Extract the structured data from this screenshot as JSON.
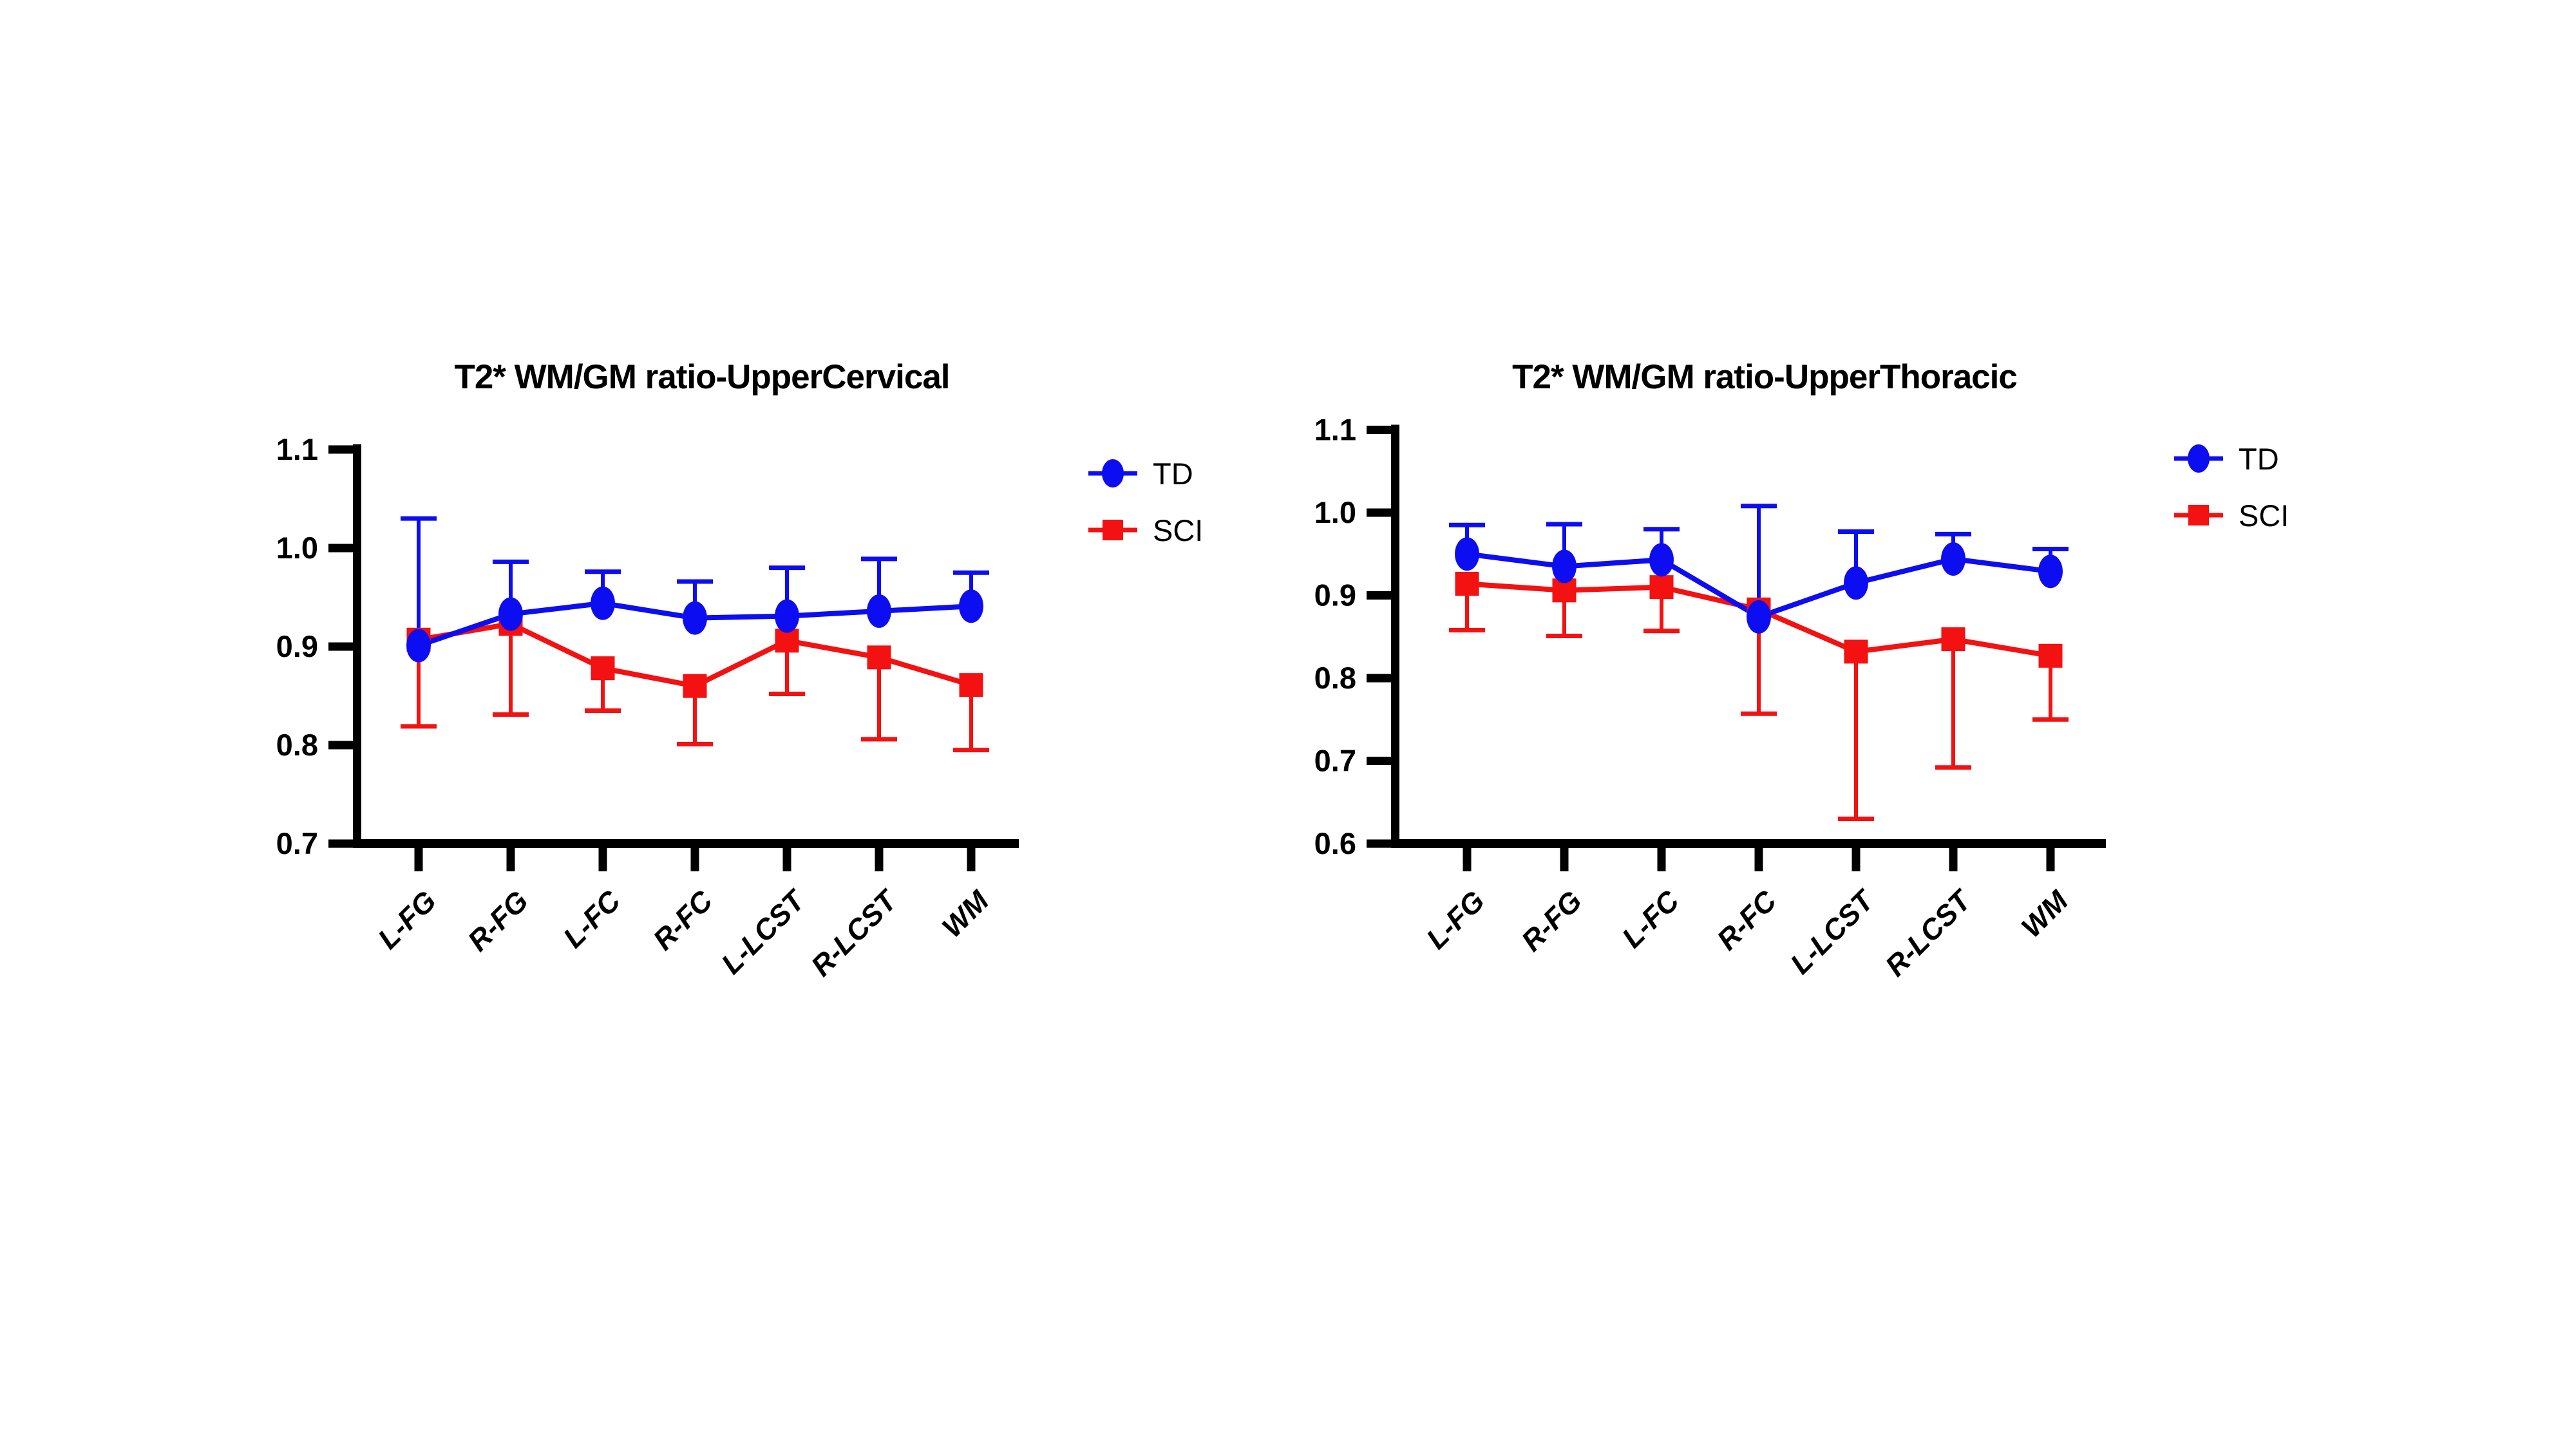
{
  "figure": {
    "background_color": "#ffffff",
    "text_color": "#000000"
  },
  "chart_data": [
    {
      "type": "line",
      "title": "T2* WM/GM ratio-UpperCervical",
      "xlabel": "",
      "ylabel": "",
      "categories": [
        "L-FG",
        "R-FG",
        "L-FC",
        "R-FC",
        "L-LCST",
        "R-LCST",
        "WM"
      ],
      "y_axis": {
        "min": 0.7,
        "max": 1.1,
        "tick_step": 0.1,
        "tick_labels": [
          "0.7",
          "0.8",
          "0.9",
          "1.0",
          "1.1"
        ]
      },
      "grid": "off",
      "legend_position": "right",
      "series": [
        {
          "name": "TD",
          "color": "#0d0df2",
          "marker": "circle",
          "error_direction": "up",
          "values": [
            0.901,
            0.933,
            0.944,
            0.929,
            0.931,
            0.936,
            0.941
          ],
          "error_tips": [
            1.03,
            0.986,
            0.976,
            0.966,
            0.98,
            0.989,
            0.975
          ]
        },
        {
          "name": "SCI",
          "color": "#f31111",
          "marker": "square",
          "error_direction": "down",
          "values": [
            0.907,
            0.923,
            0.878,
            0.86,
            0.906,
            0.889,
            0.861
          ],
          "error_tips": [
            0.819,
            0.831,
            0.835,
            0.801,
            0.852,
            0.806,
            0.795
          ]
        }
      ]
    },
    {
      "type": "line",
      "title": "T2* WM/GM ratio-UpperThoracic",
      "xlabel": "",
      "ylabel": "",
      "categories": [
        "L-FG",
        "R-FG",
        "L-FC",
        "R-FC",
        "L-LCST",
        "R-LCST",
        "WM"
      ],
      "y_axis": {
        "min": 0.6,
        "max": 1.1,
        "tick_step": 0.1,
        "tick_labels": [
          "0.6",
          "0.7",
          "0.8",
          "0.9",
          "1.0",
          "1.1"
        ]
      },
      "grid": "off",
      "legend_position": "right",
      "series": [
        {
          "name": "TD",
          "color": "#0d0df2",
          "marker": "circle",
          "error_direction": "up",
          "values": [
            0.95,
            0.935,
            0.943,
            0.874,
            0.915,
            0.944,
            0.929
          ],
          "error_tips": [
            0.985,
            0.986,
            0.98,
            1.008,
            0.977,
            0.974,
            0.956
          ]
        },
        {
          "name": "SCI",
          "color": "#f31111",
          "marker": "square",
          "error_direction": "down",
          "values": [
            0.914,
            0.906,
            0.91,
            0.883,
            0.832,
            0.847,
            0.827
          ],
          "error_tips": [
            0.858,
            0.851,
            0.857,
            0.757,
            0.63,
            0.692,
            0.75
          ]
        }
      ]
    }
  ]
}
